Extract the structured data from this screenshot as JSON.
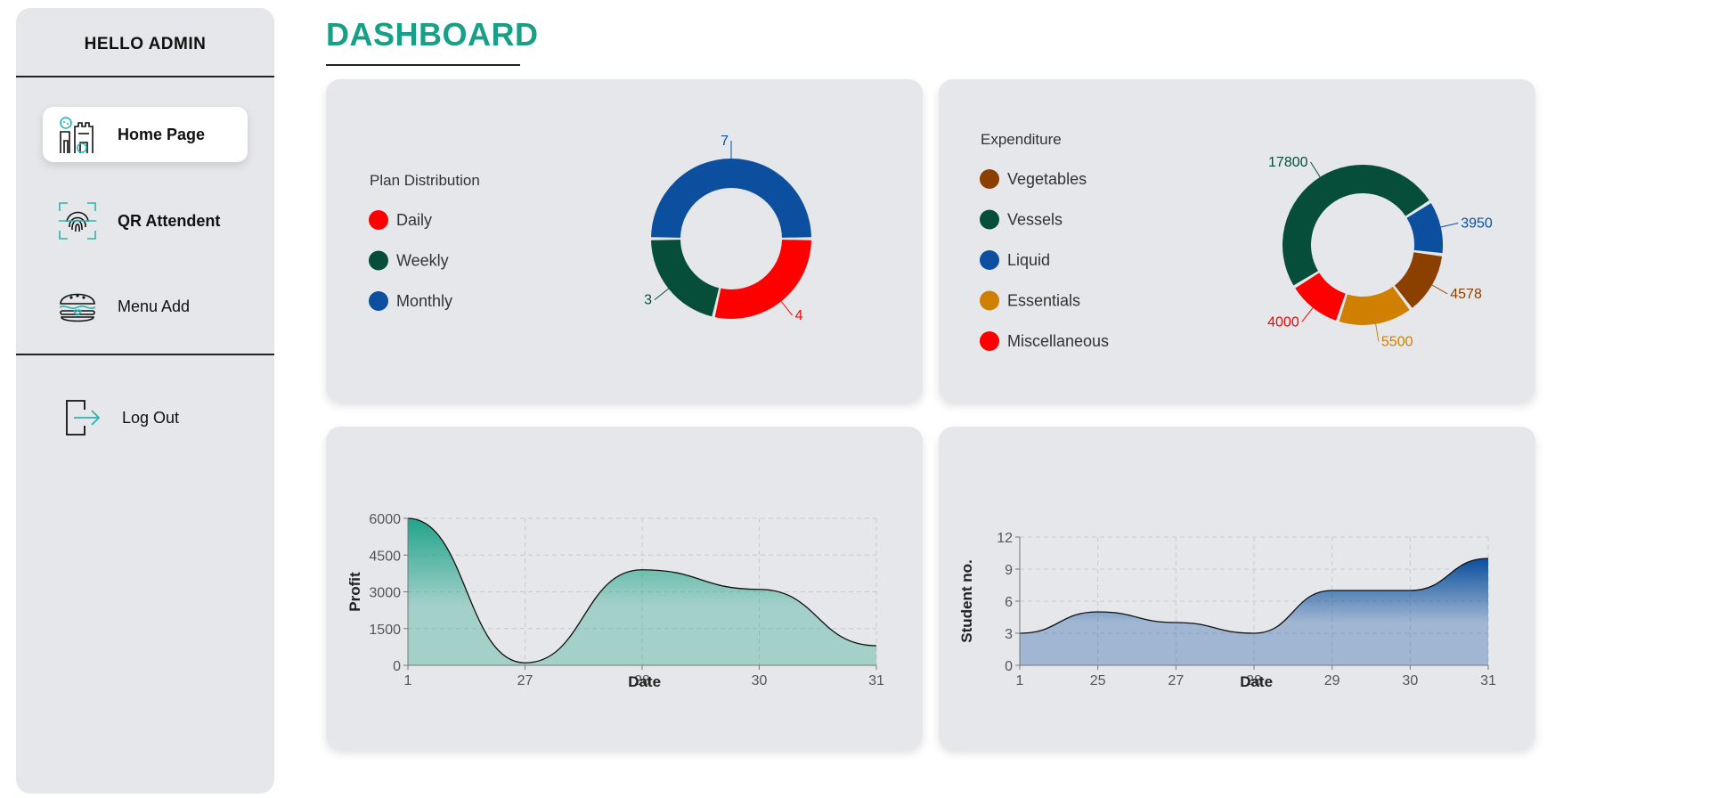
{
  "sidebar": {
    "greeting": "HELLO ADMIN",
    "items": [
      {
        "label": "Home Page",
        "icon": "home-castle-icon",
        "active": true
      },
      {
        "label": "QR Attendent",
        "icon": "fingerprint-scan-icon",
        "active": false
      },
      {
        "label": "Menu Add",
        "icon": "burger-icon",
        "active": false
      }
    ],
    "logout": {
      "label": "Log Out",
      "icon": "logout-icon"
    }
  },
  "header": {
    "title": "DASHBOARD"
  },
  "colors": {
    "accent": "#17a085",
    "red": "#ff0000",
    "darkgreen": "#064d3a",
    "blue": "#0b4f9e",
    "brown": "#8b4000",
    "amber": "#d08000"
  },
  "chart_data": [
    {
      "type": "pie",
      "title": "Plan Distribution",
      "categories": [
        "Daily",
        "Weekly",
        "Monthly"
      ],
      "values": [
        4,
        3,
        7
      ],
      "colors": [
        "#ff0000",
        "#064d3a",
        "#0b4f9e"
      ]
    },
    {
      "type": "pie",
      "title": "Expenditure",
      "categories": [
        "Vegetables",
        "Vessels",
        "Liquid",
        "Essentials",
        "Miscellaneous"
      ],
      "values": [
        4578,
        17800,
        3950,
        5500,
        4000
      ],
      "colors": [
        "#8b4000",
        "#064d3a",
        "#0b4f9e",
        "#d08000",
        "#ff0000"
      ]
    },
    {
      "type": "area",
      "title": "",
      "xlabel": "Date",
      "ylabel": "Profit",
      "x": [
        "1",
        "27",
        "28",
        "30",
        "31"
      ],
      "values": [
        6000,
        100,
        3900,
        3100,
        800
      ],
      "yticks": [
        0,
        1500,
        3000,
        4500,
        6000
      ],
      "ylim": [
        0,
        6000
      ],
      "grid": true,
      "color": "#17a085"
    },
    {
      "type": "area",
      "title": "",
      "xlabel": "Date",
      "ylabel": "Student no.",
      "x": [
        "1",
        "25",
        "27",
        "28",
        "29",
        "30",
        "31"
      ],
      "values": [
        3,
        5,
        4,
        3,
        7,
        7,
        10
      ],
      "yticks": [
        0,
        3,
        6,
        9,
        12
      ],
      "ylim": [
        0,
        12
      ],
      "grid": true,
      "color": "#0b4f9e"
    }
  ]
}
